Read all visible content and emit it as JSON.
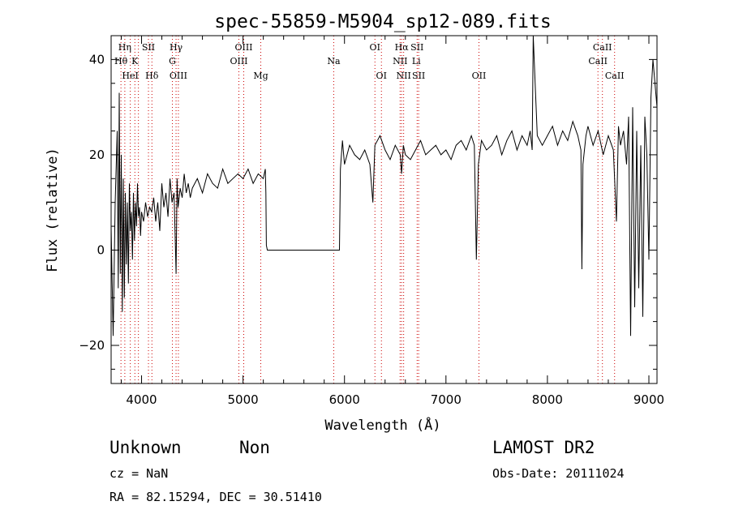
{
  "chart_data": {
    "type": "line",
    "title": "spec-55859-M5904_sp12-089.fits",
    "xlabel": "Wavelength (Å)",
    "ylabel": "Flux (relative)",
    "xlim": [
      3700,
      9080
    ],
    "ylim": [
      -28,
      45
    ],
    "x_ticks": [
      4000,
      5000,
      6000,
      7000,
      8000,
      9000
    ],
    "y_ticks": [
      -20,
      0,
      20,
      40
    ],
    "grid": false,
    "series": [
      {
        "color": "#000000",
        "x": [
          3700,
          3720,
          3740,
          3760,
          3770,
          3780,
          3790,
          3800,
          3810,
          3820,
          3830,
          3840,
          3850,
          3860,
          3870,
          3880,
          3890,
          3900,
          3910,
          3920,
          3930,
          3940,
          3950,
          3960,
          3970,
          3980,
          3990,
          4000,
          4020,
          4040,
          4060,
          4080,
          4100,
          4120,
          4140,
          4160,
          4180,
          4200,
          4220,
          4240,
          4260,
          4280,
          4300,
          4320,
          4340,
          4350,
          4360,
          4380,
          4400,
          4420,
          4440,
          4460,
          4480,
          4500,
          4550,
          4600,
          4650,
          4700,
          4750,
          4800,
          4850,
          4900,
          4950,
          5000,
          5050,
          5100,
          5150,
          5200,
          5220,
          5225,
          5230,
          5240,
          5300,
          5500,
          5700,
          5900,
          5940,
          5950,
          5960,
          5980,
          6000,
          6050,
          6100,
          6150,
          6200,
          6250,
          6280,
          6300,
          6350,
          6400,
          6450,
          6500,
          6550,
          6563,
          6580,
          6600,
          6650,
          6700,
          6750,
          6800,
          6850,
          6900,
          6950,
          7000,
          7050,
          7100,
          7150,
          7200,
          7250,
          7280,
          7300,
          7320,
          7350,
          7400,
          7450,
          7500,
          7550,
          7600,
          7650,
          7700,
          7750,
          7800,
          7830,
          7840,
          7850,
          7860,
          7900,
          7950,
          8000,
          8050,
          8100,
          8150,
          8200,
          8250,
          8300,
          8330,
          8340,
          8350,
          8380,
          8400,
          8450,
          8500,
          8520,
          8550,
          8600,
          8650,
          8680,
          8700,
          8720,
          8750,
          8780,
          8800,
          8820,
          8840,
          8860,
          8880,
          8900,
          8920,
          8940,
          8960,
          8980,
          9000,
          9020,
          9040,
          9060,
          9080
        ],
        "values": [
          5,
          -18,
          10,
          25,
          -8,
          33,
          -5,
          20,
          -13,
          15,
          -10,
          12,
          -3,
          10,
          -7,
          14,
          4,
          8,
          -2,
          12,
          2,
          10,
          5,
          14,
          7,
          9,
          3,
          8,
          6,
          10,
          7,
          9,
          8,
          11,
          6,
          10,
          4,
          14,
          9,
          12,
          7,
          15,
          10,
          12,
          -5,
          15,
          9,
          13,
          11,
          16,
          12,
          14,
          11,
          13,
          15,
          12,
          16,
          14,
          13,
          17,
          14,
          15,
          16,
          15,
          17,
          14,
          16,
          15,
          17,
          12,
          1,
          0,
          0,
          0,
          0,
          0,
          0,
          0,
          17,
          23,
          18,
          22,
          20,
          19,
          21,
          18,
          10,
          22,
          24,
          21,
          19,
          22,
          20,
          16,
          22,
          20,
          19,
          21,
          23,
          20,
          21,
          22,
          20,
          21,
          19,
          22,
          23,
          21,
          24,
          22,
          -2,
          18,
          23,
          21,
          22,
          24,
          20,
          23,
          25,
          21,
          24,
          22,
          25,
          23,
          21,
          45,
          24,
          22,
          24,
          26,
          22,
          25,
          23,
          27,
          24,
          21,
          -4,
          18,
          24,
          26,
          22,
          25,
          23,
          20,
          24,
          21,
          6,
          26,
          22,
          25,
          18,
          28,
          -18,
          30,
          -12,
          25,
          -8,
          22,
          -14,
          28,
          20,
          -2,
          32,
          40,
          35,
          30
        ]
      }
    ],
    "line_labels": [
      {
        "text": "Hη",
        "x": 3835,
        "row": 1
      },
      {
        "text": "Hθ",
        "x": 3797,
        "row": 2
      },
      {
        "text": "HeI",
        "x": 3889,
        "row": 3
      },
      {
        "text": "SII",
        "x": 4068,
        "row": 1
      },
      {
        "text": "K",
        "x": 3934,
        "row": 2
      },
      {
        "text": "Hδ",
        "x": 4102,
        "row": 3
      },
      {
        "text": "Hγ",
        "x": 4340,
        "row": 1
      },
      {
        "text": "G",
        "x": 4304,
        "row": 2
      },
      {
        "text": "OIII",
        "x": 4363,
        "row": 3
      },
      {
        "text": "OIII",
        "x": 5007,
        "row": 1
      },
      {
        "text": "OIII",
        "x": 4959,
        "row": 2
      },
      {
        "text": "Mg",
        "x": 5175,
        "row": 3
      },
      {
        "text": "Na",
        "x": 5894,
        "row": 2
      },
      {
        "text": "OI",
        "x": 6300,
        "row": 1
      },
      {
        "text": "OI",
        "x": 6364,
        "row": 3
      },
      {
        "text": "Hα",
        "x": 6563,
        "row": 1
      },
      {
        "text": "SII",
        "x": 6716,
        "row": 1
      },
      {
        "text": "NII",
        "x": 6548,
        "row": 2
      },
      {
        "text": "Li",
        "x": 6708,
        "row": 2
      },
      {
        "text": "NII",
        "x": 6583,
        "row": 3
      },
      {
        "text": "SII",
        "x": 6731,
        "row": 3
      },
      {
        "text": "OII",
        "x": 7325,
        "row": 3
      },
      {
        "text": "CaII",
        "x": 8542,
        "row": 1
      },
      {
        "text": "CaII",
        "x": 8498,
        "row": 2
      },
      {
        "text": "CaII",
        "x": 8662,
        "row": 3
      }
    ],
    "line_markers": [
      3797,
      3835,
      3889,
      3934,
      3969,
      4068,
      4102,
      4304,
      4340,
      4363,
      4959,
      5007,
      5175,
      5894,
      6300,
      6364,
      6548,
      6563,
      6583,
      6716,
      6731,
      7325,
      8498,
      8542,
      8662
    ]
  },
  "info": {
    "class_label": "Unknown",
    "subclass_label": "Non",
    "cz_text": "cz = NaN",
    "coords_text": "RA =  82.15294, DEC =  30.51410",
    "survey_text": "LAMOST DR2",
    "obs_date_text": "Obs-Date: 20111024"
  },
  "colors": {
    "spectrum": "#000000",
    "marker_line": "#cc0000",
    "background": "#ffffff"
  }
}
